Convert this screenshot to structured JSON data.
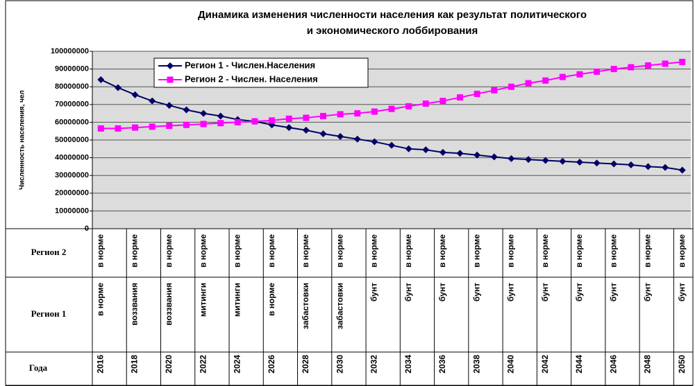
{
  "chart_data": {
    "type": "line",
    "title": [
      "Динамика изменения численности населения как результат политического",
      "и экономического лоббирования"
    ],
    "y_label": "Численность населения, чел",
    "categories_name": "Года",
    "categories": [
      "2016",
      null,
      "2018",
      null,
      "2020",
      null,
      "2022",
      null,
      "2024",
      null,
      "2026",
      null,
      "2028",
      null,
      "2030",
      null,
      "2032",
      null,
      "2034",
      null,
      "2036",
      null,
      "2038",
      null,
      "2040",
      null,
      "2042",
      null,
      "2044",
      null,
      "2046",
      null,
      "2048",
      null,
      "2050"
    ],
    "category_levels": [
      {
        "name": "Регион 2",
        "labels": [
          "в норме",
          null,
          "в норме",
          null,
          "в норме",
          null,
          "в норме",
          null,
          "в норме",
          null,
          "в норме",
          null,
          "в норме",
          null,
          "в норме",
          null,
          "в норме",
          null,
          "в норме",
          null,
          "в норме",
          null,
          "в норме",
          null,
          "в норме",
          null,
          "в норме",
          null,
          "в норме",
          null,
          "в норме",
          null,
          "в норме",
          null,
          "в норме"
        ]
      },
      {
        "name": "Регион 1",
        "labels": [
          "в норме",
          null,
          "воззвания",
          null,
          "воззвания",
          null,
          "митинги",
          null,
          "митинги",
          null,
          "в норме",
          null,
          "забастовки",
          null,
          "забастовки",
          null,
          "бунт",
          null,
          "бунт",
          null,
          "бунт",
          null,
          "бунт",
          null,
          "бунт",
          null,
          "бунт",
          null,
          "бунт",
          null,
          "бунт",
          null,
          "бунт",
          null,
          "бунт"
        ]
      }
    ],
    "series": [
      {
        "name": "Регион 1 - Числен.Населения",
        "color": "#000066",
        "marker": "diamond",
        "values": [
          84000000,
          79500000,
          75500000,
          72000000,
          69500000,
          67000000,
          65000000,
          63500000,
          61500000,
          60500000,
          58500000,
          57000000,
          55500000,
          53500000,
          52000000,
          50500000,
          49000000,
          47000000,
          45000000,
          44500000,
          43000000,
          42500000,
          41500000,
          40500000,
          39500000,
          39000000,
          38500000,
          38000000,
          37500000,
          37000000,
          36500000,
          36000000,
          35000000,
          34500000,
          33000000
        ]
      },
      {
        "name": "Регион  2 - Числен. Населения",
        "color": "#ff00ff",
        "marker": "square",
        "values": [
          56500000,
          56500000,
          57000000,
          57500000,
          58000000,
          58500000,
          59000000,
          59500000,
          60000000,
          60500000,
          61000000,
          62000000,
          62500000,
          63500000,
          64500000,
          65000000,
          66000000,
          67500000,
          69000000,
          70500000,
          72000000,
          74000000,
          76000000,
          78000000,
          80000000,
          82000000,
          83500000,
          85500000,
          87000000,
          88500000,
          90000000,
          91000000,
          92000000,
          93000000,
          94000000
        ]
      }
    ],
    "ylim": [
      0,
      100000000
    ],
    "yticks": [
      0,
      10000000,
      20000000,
      30000000,
      40000000,
      50000000,
      60000000,
      70000000,
      80000000,
      90000000,
      100000000
    ],
    "grid": true,
    "legend": "top-left"
  }
}
